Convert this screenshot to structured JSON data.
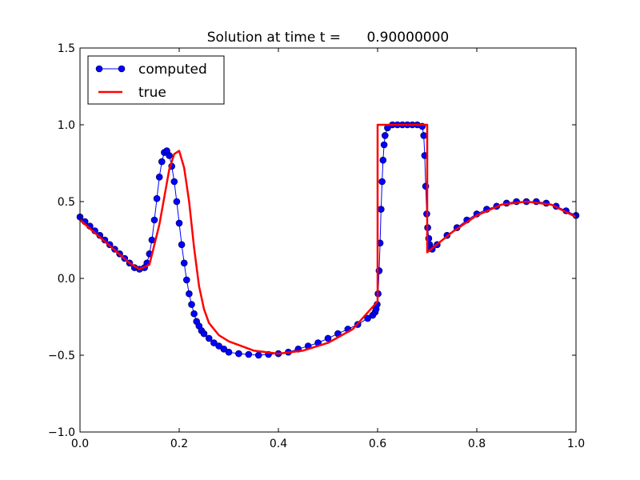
{
  "chart_data": {
    "type": "line",
    "title": "Solution at time t =      0.90000000",
    "xlabel": "",
    "ylabel": "",
    "xlim": [
      0.0,
      1.0
    ],
    "ylim": [
      -1.0,
      1.5
    ],
    "x_ticks": [
      "0.0",
      "0.2",
      "0.4",
      "0.6",
      "0.8",
      "1.0"
    ],
    "x_tick_values": [
      0.0,
      0.2,
      0.4,
      0.6,
      0.8,
      1.0
    ],
    "y_ticks": [
      "1.5",
      "1.0",
      "0.5",
      "0.0",
      "−0.5",
      "−1.0"
    ],
    "y_tick_values": [
      1.5,
      1.0,
      0.5,
      0.0,
      -0.5,
      -1.0
    ],
    "grid": false,
    "legend_position": "top-left",
    "series": [
      {
        "name": "computed",
        "style": "line-with-circle-markers",
        "color": "#0000ff",
        "marker_edge": "#000033",
        "x": [
          0.0,
          0.01,
          0.02,
          0.03,
          0.04,
          0.05,
          0.06,
          0.07,
          0.08,
          0.09,
          0.1,
          0.11,
          0.12,
          0.13,
          0.135,
          0.14,
          0.145,
          0.15,
          0.155,
          0.16,
          0.165,
          0.17,
          0.175,
          0.18,
          0.185,
          0.19,
          0.195,
          0.2,
          0.205,
          0.21,
          0.215,
          0.22,
          0.225,
          0.23,
          0.235,
          0.24,
          0.245,
          0.25,
          0.26,
          0.27,
          0.28,
          0.29,
          0.3,
          0.32,
          0.34,
          0.36,
          0.38,
          0.4,
          0.42,
          0.44,
          0.46,
          0.48,
          0.5,
          0.52,
          0.54,
          0.56,
          0.58,
          0.59,
          0.595,
          0.597,
          0.599,
          0.601,
          0.603,
          0.605,
          0.607,
          0.609,
          0.611,
          0.613,
          0.615,
          0.62,
          0.63,
          0.64,
          0.65,
          0.66,
          0.67,
          0.68,
          0.69,
          0.693,
          0.695,
          0.697,
          0.699,
          0.701,
          0.703,
          0.705,
          0.707,
          0.71,
          0.72,
          0.74,
          0.76,
          0.78,
          0.8,
          0.82,
          0.84,
          0.86,
          0.88,
          0.9,
          0.92,
          0.94,
          0.96,
          0.98,
          1.0
        ],
        "y": [
          0.4,
          0.37,
          0.34,
          0.31,
          0.28,
          0.25,
          0.22,
          0.19,
          0.16,
          0.13,
          0.1,
          0.07,
          0.06,
          0.07,
          0.1,
          0.16,
          0.25,
          0.38,
          0.52,
          0.66,
          0.76,
          0.82,
          0.83,
          0.8,
          0.73,
          0.63,
          0.5,
          0.36,
          0.22,
          0.1,
          -0.01,
          -0.1,
          -0.17,
          -0.23,
          -0.28,
          -0.31,
          -0.34,
          -0.36,
          -0.39,
          -0.42,
          -0.44,
          -0.46,
          -0.48,
          -0.49,
          -0.495,
          -0.5,
          -0.495,
          -0.49,
          -0.48,
          -0.46,
          -0.44,
          -0.42,
          -0.39,
          -0.36,
          -0.33,
          -0.3,
          -0.26,
          -0.24,
          -0.22,
          -0.2,
          -0.17,
          -0.1,
          0.05,
          0.23,
          0.45,
          0.63,
          0.77,
          0.87,
          0.93,
          0.98,
          1.0,
          1.0,
          1.0,
          1.0,
          1.0,
          1.0,
          0.99,
          0.93,
          0.8,
          0.6,
          0.42,
          0.33,
          0.26,
          0.22,
          0.2,
          0.19,
          0.22,
          0.28,
          0.33,
          0.38,
          0.42,
          0.45,
          0.47,
          0.49,
          0.5,
          0.5,
          0.5,
          0.49,
          0.47,
          0.44,
          0.41
        ]
      },
      {
        "name": "true",
        "style": "line",
        "color": "#ff0000",
        "x": [
          0.0,
          0.05,
          0.1,
          0.12,
          0.14,
          0.16,
          0.18,
          0.19,
          0.2,
          0.21,
          0.22,
          0.23,
          0.24,
          0.25,
          0.26,
          0.28,
          0.3,
          0.35,
          0.4,
          0.45,
          0.5,
          0.55,
          0.6,
          0.6,
          0.7,
          0.7,
          0.75,
          0.8,
          0.85,
          0.9,
          0.95,
          1.0
        ],
        "y": [
          0.38,
          0.24,
          0.1,
          0.06,
          0.09,
          0.35,
          0.71,
          0.81,
          0.83,
          0.72,
          0.5,
          0.2,
          -0.05,
          -0.2,
          -0.29,
          -0.37,
          -0.41,
          -0.47,
          -0.49,
          -0.47,
          -0.42,
          -0.33,
          -0.15,
          1.0,
          1.0,
          0.17,
          0.3,
          0.41,
          0.48,
          0.5,
          0.48,
          0.4
        ]
      }
    ]
  }
}
